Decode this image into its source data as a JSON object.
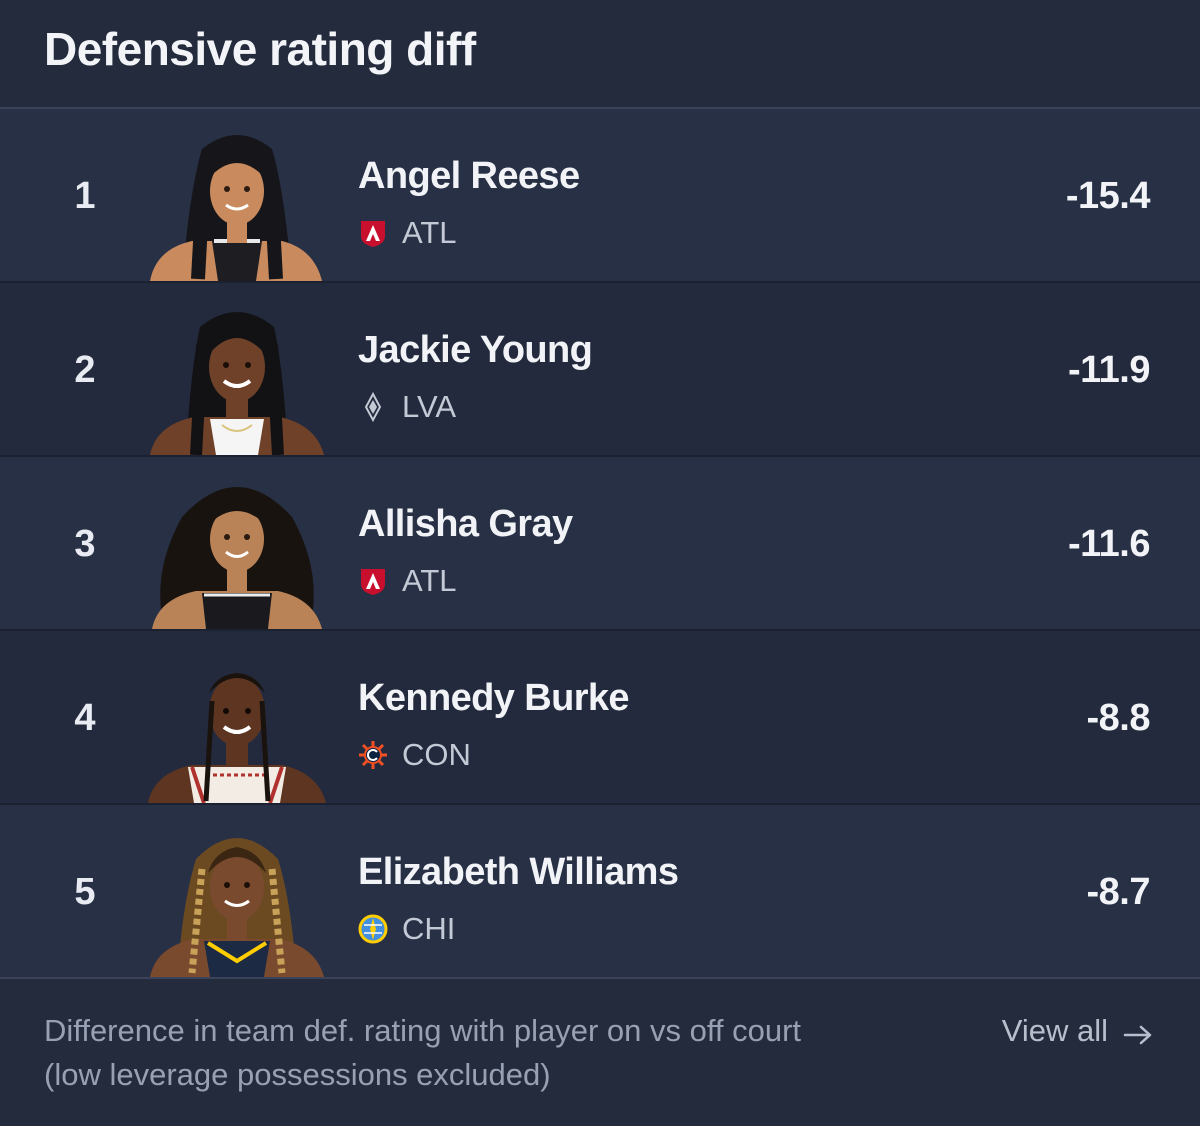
{
  "header": {
    "title": "Defensive rating diff"
  },
  "players": [
    {
      "rank": "1",
      "name": "Angel Reese",
      "team": "ATL",
      "team_logo": "atl-dream-logo",
      "value": "-15.4"
    },
    {
      "rank": "2",
      "name": "Jackie Young",
      "team": "LVA",
      "team_logo": "lva-aces-logo",
      "value": "-11.9"
    },
    {
      "rank": "3",
      "name": "Allisha Gray",
      "team": "ATL",
      "team_logo": "atl-dream-logo",
      "value": "-11.6"
    },
    {
      "rank": "4",
      "name": "Kennedy Burke",
      "team": "CON",
      "team_logo": "con-sun-logo",
      "value": "-8.8"
    },
    {
      "rank": "5",
      "name": "Elizabeth Williams",
      "team": "CHI",
      "team_logo": "chi-sky-logo",
      "value": "-8.7"
    }
  ],
  "footer": {
    "note": "Difference in team def. rating with player on vs off court (low leverage possessions excluded)",
    "view_all_label": "View all"
  },
  "colors": {
    "background": "#242b3d",
    "row_alt": "#273045",
    "text_primary": "#f1f3f7",
    "text_secondary": "#98a1b3",
    "atl_red": "#c8102e",
    "con_orange": "#f05023",
    "chi_yellow": "#ffcd00",
    "chi_blue": "#418fde"
  }
}
